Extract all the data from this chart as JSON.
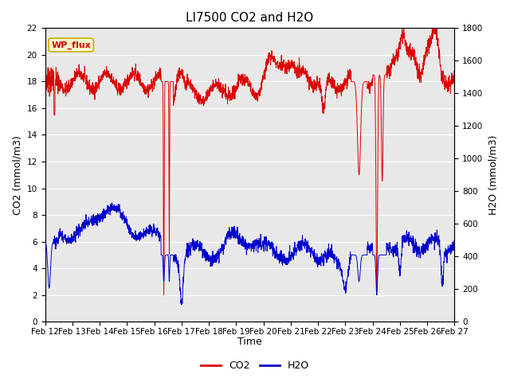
{
  "title": "LI7500 CO2 and H2O",
  "xlabel": "Time",
  "ylabel_left": "CO2 (mmol/m3)",
  "ylabel_right": "H2O (mmol/m3)",
  "annotation": "WP_flux",
  "annotation_color": "#cc0000",
  "annotation_bg": "#ffffcc",
  "annotation_border": "#ccaa00",
  "co2_color": "#dd0000",
  "h2o_color": "#0000cc",
  "ylim_left": [
    0,
    22
  ],
  "ylim_right": [
    0,
    1800
  ],
  "background_color": "#e8e8e8",
  "x_tick_labels": [
    "Feb 12",
    "Feb 13",
    "Feb 14",
    "Feb 15",
    "Feb 16",
    "Feb 17",
    "Feb 18",
    "Feb 19",
    "Feb 20",
    "Feb 21",
    "Feb 22",
    "Feb 23",
    "Feb 24",
    "Feb 25",
    "Feb 26",
    "Feb 27"
  ],
  "title_fontsize": 11,
  "axis_fontsize": 9,
  "tick_fontsize": 7.5
}
